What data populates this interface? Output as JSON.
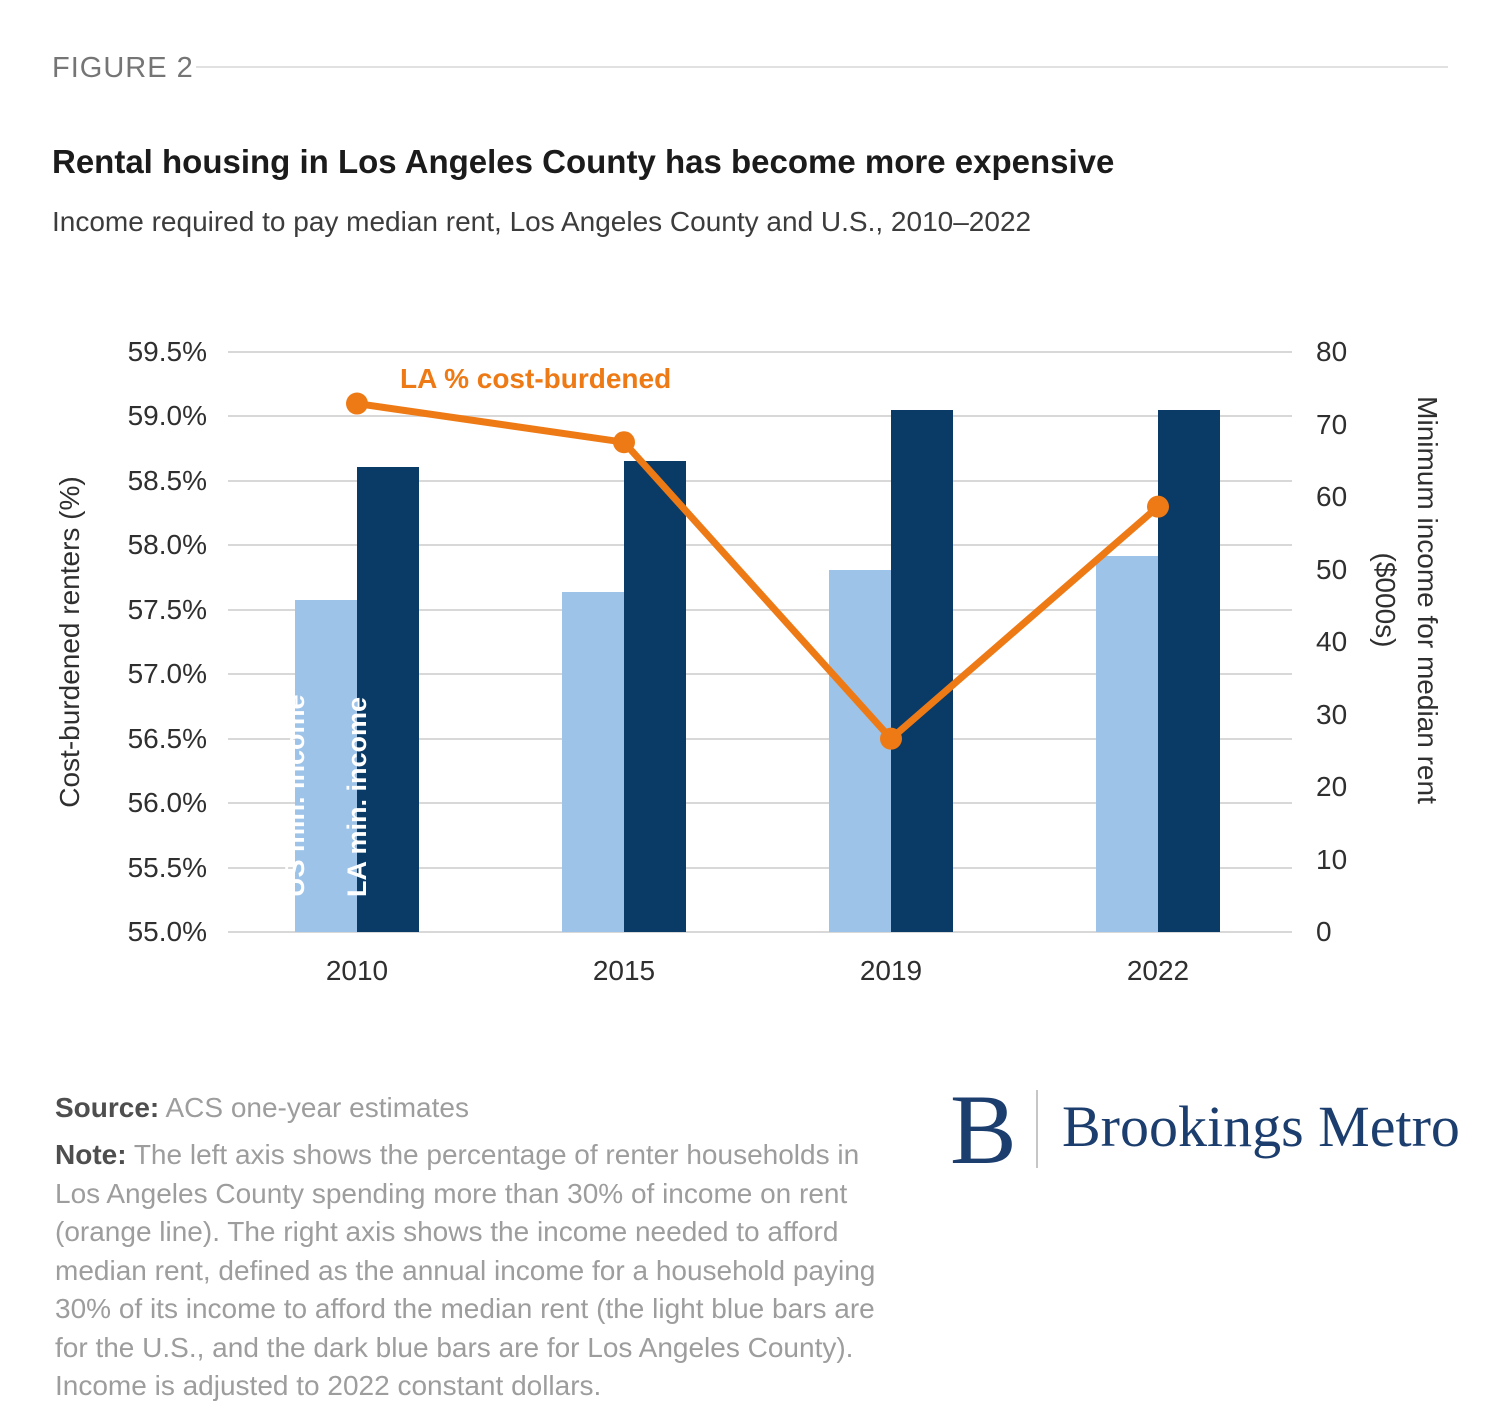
{
  "figure_label": "FIGURE 2",
  "title": "Rental housing in Los Angeles County has become more expensive",
  "subtitle": "Income required to pay median rent, Los Angeles County and U.S., 2010–2022",
  "chart_data": {
    "type": "bar",
    "categories": [
      "2010",
      "2015",
      "2019",
      "2022"
    ],
    "series": [
      {
        "name": "US min. income",
        "type": "bar",
        "axis": "right",
        "color": "#9dc3e8",
        "values": [
          45.8,
          46.9,
          50.0,
          51.8
        ]
      },
      {
        "name": "LA min. income",
        "type": "bar",
        "axis": "right",
        "color": "#0a3a66",
        "values": [
          64.1,
          65.0,
          72.0,
          72.0
        ]
      },
      {
        "name": "LA % cost-burdened",
        "type": "line",
        "axis": "left",
        "color": "#ee7a16",
        "values": [
          59.1,
          58.8,
          56.5,
          58.3
        ]
      }
    ],
    "left_axis": {
      "label": "Cost-burdened renters (%)",
      "min": 55.0,
      "max": 59.5,
      "ticks": [
        "59.5%",
        "59.0%",
        "58.5%",
        "58.0%",
        "57.5%",
        "57.0%",
        "56.5%",
        "56.0%",
        "55.5%",
        "55.0%"
      ]
    },
    "right_axis": {
      "label_line1": "Minimum income for median rent",
      "label_line2": "($000s)",
      "min": 0,
      "max": 80,
      "ticks": [
        "80",
        "70",
        "60",
        "50",
        "40",
        "30",
        "20",
        "10",
        "0"
      ]
    },
    "line_label": "LA % cost-burdened",
    "grid": true,
    "legend_position": "inside-top"
  },
  "footer": {
    "source_label": "Source:",
    "source_text": "ACS one-year estimates",
    "note_label": "Note:",
    "note_lines": [
      "The left axis shows the percentage of renter households in",
      "Los Angeles County spending more than 30% of income on rent",
      "(orange line). The right axis shows the income needed to afford",
      "median rent, defined as the annual income for a household paying",
      "30% of its income to afford the median rent (the light blue bars are",
      "for the U.S., and the dark blue bars are for Los Angeles County).",
      "Income is adjusted to 2022 constant dollars."
    ]
  },
  "logo": {
    "mark": "B",
    "name": "Brookings Metro",
    "color": "#1c3e6e"
  }
}
